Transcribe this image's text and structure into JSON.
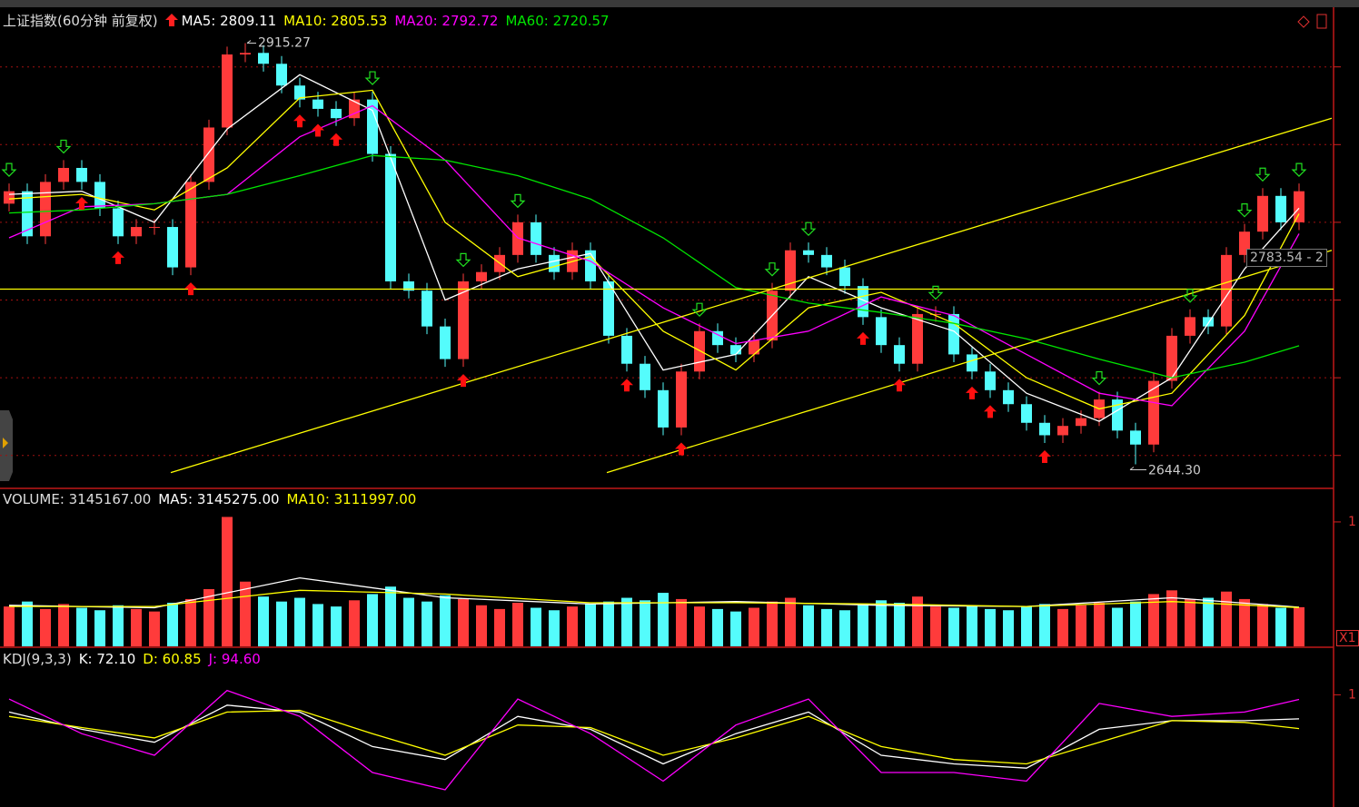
{
  "chart_data": [
    {
      "type": "candlestick",
      "title": "上证指数(60分钟 前复权)",
      "open": [
        2812,
        2820,
        2791,
        2826,
        2835,
        2826,
        2809,
        2791,
        2797,
        2797,
        2771,
        2826,
        2861,
        2908,
        2909,
        2902,
        2888,
        2879,
        2873,
        2867,
        2879,
        2844,
        2762,
        2756,
        2733,
        2712,
        2762,
        2768,
        2779,
        2800,
        2779,
        2768,
        2782,
        2762,
        2727,
        2709,
        2692,
        2668,
        2704,
        2730,
        2721,
        2715,
        2724,
        2756,
        2782,
        2779,
        2771,
        2759,
        2739,
        2721,
        2709,
        2741,
        2741,
        2715,
        2704,
        2692,
        2683,
        2671,
        2663,
        2669,
        2674,
        2686,
        2666,
        2657,
        2698,
        2727,
        2739,
        2733,
        2779,
        2794,
        2817,
        2800
      ],
      "high": [
        2825,
        2825,
        2831,
        2840,
        2840,
        2831,
        2814,
        2802,
        2802,
        2802,
        2831,
        2866,
        2913,
        2915.27,
        2914,
        2907,
        2893,
        2884,
        2878,
        2884,
        2884,
        2849,
        2767,
        2761,
        2738,
        2767,
        2773,
        2784,
        2805,
        2805,
        2784,
        2787,
        2787,
        2767,
        2732,
        2714,
        2697,
        2709,
        2735,
        2735,
        2726,
        2729,
        2761,
        2787,
        2787,
        2784,
        2776,
        2764,
        2744,
        2726,
        2746,
        2746,
        2746,
        2720,
        2709,
        2697,
        2688,
        2676,
        2674,
        2679,
        2691,
        2691,
        2671,
        2703,
        2732,
        2744,
        2744,
        2784,
        2799,
        2822,
        2822,
        2825
      ],
      "low": [
        2807,
        2786,
        2786,
        2821,
        2821,
        2804,
        2786,
        2786,
        2792,
        2766,
        2766,
        2821,
        2856,
        2903,
        2897,
        2883,
        2874,
        2868,
        2862,
        2862,
        2839,
        2757,
        2751,
        2728,
        2707,
        2707,
        2757,
        2763,
        2774,
        2774,
        2763,
        2763,
        2757,
        2722,
        2704,
        2687,
        2663,
        2663,
        2699,
        2716,
        2710,
        2710,
        2719,
        2751,
        2774,
        2766,
        2754,
        2734,
        2716,
        2704,
        2704,
        2736,
        2710,
        2699,
        2687,
        2678,
        2666,
        2658,
        2658,
        2664,
        2669,
        2661,
        2644.3,
        2652,
        2693,
        2722,
        2728,
        2728,
        2774,
        2789,
        2795,
        2795
      ],
      "close": [
        2820,
        2791,
        2826,
        2835,
        2826,
        2809,
        2791,
        2797,
        2797,
        2771,
        2826,
        2861,
        2908,
        2909,
        2902,
        2888,
        2879,
        2873,
        2867,
        2879,
        2844,
        2762,
        2756,
        2733,
        2712,
        2762,
        2768,
        2779,
        2800,
        2779,
        2768,
        2782,
        2762,
        2727,
        2709,
        2692,
        2668,
        2704,
        2730,
        2721,
        2715,
        2724,
        2756,
        2782,
        2779,
        2771,
        2759,
        2739,
        2721,
        2709,
        2741,
        2741,
        2715,
        2704,
        2692,
        2683,
        2671,
        2663,
        2669,
        2674,
        2686,
        2666,
        2657,
        2698,
        2727,
        2739,
        2733,
        2779,
        2794,
        2817,
        2800,
        2820
      ],
      "up_color": "#ff3b3b",
      "down_color": "#54fcfc",
      "ylim": [
        2629.4,
        2937.2
      ],
      "yticks": [
        2650,
        2700,
        2750,
        2800,
        2850,
        2900
      ],
      "grid": true,
      "series": [
        {
          "name": "MA5: 2809.11",
          "color": "#ffffff",
          "x": [
            0,
            4,
            8,
            12,
            16,
            20,
            24,
            28,
            32,
            36,
            40,
            44,
            48,
            52,
            56,
            60,
            64,
            68,
            71
          ],
          "values": [
            2818,
            2820,
            2800,
            2860,
            2895,
            2872,
            2750,
            2770,
            2780,
            2705,
            2715,
            2765,
            2745,
            2730,
            2690,
            2672,
            2700,
            2770,
            2809.11
          ]
        },
        {
          "name": "MA10: 2805.53",
          "color": "#ffff00",
          "x": [
            0,
            4,
            8,
            12,
            16,
            20,
            24,
            28,
            32,
            36,
            40,
            44,
            48,
            52,
            56,
            60,
            64,
            68,
            71
          ],
          "values": [
            2815,
            2818,
            2808,
            2835,
            2880,
            2885,
            2800,
            2765,
            2778,
            2730,
            2705,
            2745,
            2755,
            2735,
            2700,
            2680,
            2690,
            2740,
            2805.53
          ]
        },
        {
          "name": "MA20: 2792.72",
          "color": "#ff00ff",
          "x": [
            0,
            4,
            8,
            12,
            16,
            20,
            24,
            28,
            32,
            36,
            40,
            44,
            48,
            52,
            56,
            60,
            64,
            68,
            71
          ],
          "values": [
            2790,
            2810,
            2812,
            2818,
            2855,
            2875,
            2840,
            2790,
            2775,
            2745,
            2722,
            2730,
            2752,
            2740,
            2715,
            2690,
            2682,
            2730,
            2792.72
          ]
        },
        {
          "name": "MA60: 2720.57",
          "color": "#00e600",
          "x": [
            0,
            4,
            8,
            12,
            16,
            20,
            24,
            28,
            32,
            36,
            40,
            44,
            48,
            52,
            56,
            60,
            64,
            68,
            71
          ],
          "values": [
            2806,
            2808,
            2812,
            2818,
            2830,
            2843,
            2840,
            2830,
            2815,
            2790,
            2758,
            2748,
            2742,
            2735,
            2725,
            2712,
            2700,
            2710,
            2720.57
          ]
        }
      ],
      "trendlines": [
        {
          "color": "#ffff00",
          "x": [
            8.9,
            72.8
          ],
          "values": [
            2639,
            2867
          ]
        },
        {
          "color": "#ffff00",
          "x": [
            -1,
            74
          ],
          "values": [
            2757,
            2757
          ]
        },
        {
          "color": "#ffff00",
          "x": [
            32.9,
            72.8
          ],
          "values": [
            2639,
            2782
          ]
        }
      ],
      "buy_signals": [
        4,
        6,
        10,
        16,
        17,
        18,
        25,
        34,
        37,
        47,
        49,
        53,
        54,
        57
      ],
      "sell_signals": [
        0,
        3,
        20,
        25,
        28,
        38,
        42,
        44,
        51,
        60,
        65,
        68,
        69,
        71
      ],
      "high_label": "2915.27",
      "low_label": "2644.30",
      "price_label": "2783.54 - 2"
    },
    {
      "type": "bar",
      "title": "VOLUME: 3145167.00",
      "values": [
        3200000,
        3600000,
        3000000,
        3400000,
        3100000,
        2900000,
        3300000,
        3000000,
        2800000,
        3500000,
        3800000,
        4600000,
        10400000,
        5200000,
        4000000,
        3600000,
        3900000,
        3400000,
        3200000,
        3700000,
        4200000,
        4800000,
        3900000,
        3600000,
        4100000,
        3800000,
        3300000,
        3000000,
        3500000,
        3100000,
        2900000,
        3200000,
        3400000,
        3600000,
        3900000,
        3700000,
        4300000,
        3800000,
        3200000,
        3000000,
        2800000,
        3100000,
        3600000,
        3900000,
        3300000,
        3000000,
        2900000,
        3400000,
        3700000,
        3500000,
        4000000,
        3200000,
        3100000,
        3300000,
        3000000,
        2900000,
        3200000,
        3400000,
        3000000,
        3300000,
        3500000,
        3100000,
        3600000,
        4200000,
        4500000,
        3800000,
        3900000,
        4400000,
        3800000,
        3400000,
        3100000,
        3145167
      ],
      "ylim": [
        0,
        12550000
      ],
      "yticks": [
        {
          "value": 10000000,
          "label": "1"
        }
      ],
      "grid": false,
      "unit_label": "X1",
      "series": [
        {
          "name": "MA5: 3145275.00",
          "color": "#ffffff",
          "x": [
            0,
            8,
            16,
            24,
            32,
            40,
            48,
            56,
            64,
            71
          ],
          "values": [
            3300000,
            3100000,
            5500000,
            3900000,
            3400000,
            3600000,
            3300000,
            3200000,
            3900000,
            3145275
          ]
        },
        {
          "name": "MA10: 3111997.00",
          "color": "#ffff00",
          "x": [
            0,
            8,
            16,
            24,
            32,
            40,
            48,
            56,
            64,
            71
          ],
          "values": [
            3200000,
            3200000,
            4500000,
            4200000,
            3500000,
            3500000,
            3400000,
            3200000,
            3600000,
            3111997
          ]
        }
      ]
    },
    {
      "type": "line",
      "title": "KDJ(9,3,3)",
      "ylim": [
        -30,
        153
      ],
      "yticks": [
        {
          "value": 100,
          "label": "1"
        }
      ],
      "grid": false,
      "series": [
        {
          "name": "K: 72.10",
          "color": "#ffffff",
          "x": [
            0,
            4,
            8,
            12,
            16,
            20,
            24,
            28,
            32,
            36,
            40,
            44,
            48,
            52,
            56,
            60,
            64,
            68,
            71
          ],
          "values": [
            80,
            60,
            45,
            88,
            80,
            40,
            25,
            75,
            60,
            20,
            55,
            80,
            30,
            20,
            15,
            60,
            70,
            70,
            72.1
          ]
        },
        {
          "name": "D: 60.85",
          "color": "#ffff00",
          "x": [
            0,
            4,
            8,
            12,
            16,
            20,
            24,
            28,
            32,
            36,
            40,
            44,
            48,
            52,
            56,
            60,
            64,
            68,
            71
          ],
          "values": [
            75,
            62,
            50,
            80,
            82,
            55,
            30,
            65,
            62,
            30,
            50,
            75,
            40,
            25,
            20,
            45,
            70,
            68,
            60.85
          ]
        },
        {
          "name": "J: 94.60",
          "color": "#ff00ff",
          "x": [
            0,
            4,
            8,
            12,
            16,
            20,
            24,
            28,
            32,
            36,
            40,
            44,
            48,
            52,
            56,
            60,
            64,
            68,
            71
          ],
          "values": [
            95,
            55,
            30,
            105,
            75,
            10,
            -10,
            95,
            55,
            0,
            65,
            95,
            10,
            10,
            0,
            90,
            75,
            80,
            94.6
          ]
        }
      ]
    }
  ]
}
